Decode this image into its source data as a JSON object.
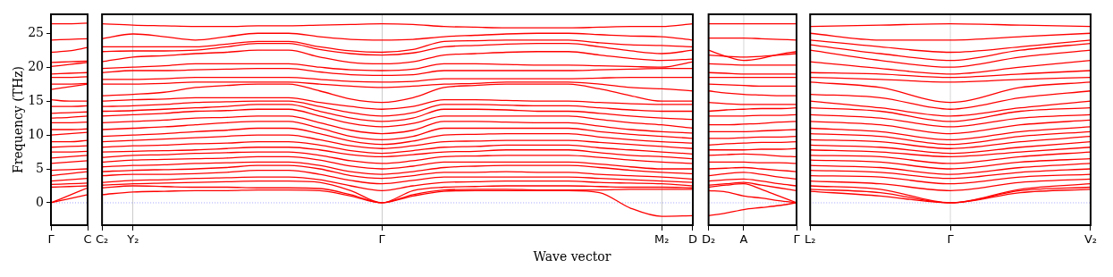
{
  "chart_data": [
    {
      "type": "line",
      "ylabel": "Frequency (THz)",
      "categories": [
        "Γ",
        null,
        "C"
      ],
      "ylim": [
        -3.3,
        27.8
      ],
      "yticks": [
        0,
        5,
        10,
        15,
        20,
        25
      ],
      "legend": false,
      "marker": "none",
      "line_style": "solid",
      "ref_lines": [
        {
          "axis": "y",
          "value": 0,
          "color": "#8888ff",
          "line_style": "dotted"
        }
      ],
      "series": [
        {
          "color": "#ff0000",
          "values": [
            0,
            0.6,
            1.2
          ]
        },
        {
          "color": "#ff0000",
          "values": [
            0,
            1.1,
            2.2
          ]
        },
        {
          "color": "#ff0000",
          "values": [
            2.3,
            2.4,
            2.5
          ]
        },
        {
          "color": "#ff0000",
          "values": [
            2.7,
            2.8,
            2.9
          ]
        },
        {
          "color": "#ff0000",
          "values": [
            3.2,
            3.4,
            3.6
          ]
        },
        {
          "color": "#ff0000",
          "values": [
            4.0,
            4.3,
            4.6
          ]
        },
        {
          "color": "#ff0000",
          "values": [
            4.8,
            4.9,
            5.0
          ]
        },
        {
          "color": "#ff0000",
          "values": [
            5.8,
            6.0,
            6.2
          ]
        },
        {
          "color": "#ff0000",
          "values": [
            6.6,
            6.8,
            7.0
          ]
        },
        {
          "color": "#ff0000",
          "values": [
            7.5,
            7.5,
            7.6
          ]
        },
        {
          "color": "#ff0000",
          "values": [
            8.2,
            8.3,
            8.4
          ]
        },
        {
          "color": "#ff0000",
          "values": [
            9.0,
            9.0,
            9.2
          ]
        },
        {
          "color": "#ff0000",
          "values": [
            10.0,
            10.2,
            10.4
          ]
        },
        {
          "color": "#ff0000",
          "values": [
            10.8,
            10.8,
            10.9
          ]
        },
        {
          "color": "#ff0000",
          "values": [
            11.8,
            11.8,
            11.9
          ]
        },
        {
          "color": "#ff0000",
          "values": [
            12.5,
            12.6,
            12.8
          ]
        },
        {
          "color": "#ff0000",
          "values": [
            13.2,
            13.3,
            13.4
          ]
        },
        {
          "color": "#ff0000",
          "values": [
            14.2,
            14.2,
            14.3
          ]
        },
        {
          "color": "#ff0000",
          "values": [
            15.2,
            15.0,
            15.0
          ]
        },
        {
          "color": "#ff0000",
          "values": [
            16.7,
            17.1,
            17.5
          ]
        },
        {
          "color": "#ff0000",
          "values": [
            17.5,
            17.5,
            17.6
          ]
        },
        {
          "color": "#ff0000",
          "values": [
            18.5,
            18.5,
            18.6
          ]
        },
        {
          "color": "#ff0000",
          "values": [
            19.0,
            19.1,
            19.2
          ]
        },
        {
          "color": "#ff0000",
          "values": [
            20.1,
            20.4,
            20.7
          ]
        },
        {
          "color": "#ff0000",
          "values": [
            20.7,
            20.8,
            20.9
          ]
        },
        {
          "color": "#ff0000",
          "values": [
            22.2,
            22.4,
            22.9
          ]
        },
        {
          "color": "#ff0000",
          "values": [
            24.0,
            24.1,
            24.2
          ]
        },
        {
          "color": "#ff0000",
          "values": [
            26.4,
            26.4,
            26.5
          ]
        }
      ]
    },
    {
      "type": "line",
      "xlabel": "Wave vector",
      "categories": [
        "C₂",
        "Y₂",
        null,
        null,
        null,
        null,
        null,
        null,
        null,
        "Γ",
        null,
        null,
        null,
        null,
        null,
        null,
        null,
        null,
        "M₂",
        "D"
      ],
      "ylim": [
        -3.3,
        27.8
      ],
      "yticks": [
        0,
        5,
        10,
        15,
        20,
        25
      ],
      "tick_labels": "x",
      "grid": "x",
      "legend": false,
      "marker": "none",
      "line_style": "solid",
      "ref_lines": [
        {
          "axis": "y",
          "value": 0,
          "color": "#8888ff",
          "line_style": "dotted"
        }
      ],
      "series": [
        {
          "color": "#ff0000",
          "values": [
            1.2,
            1.6,
            1.7,
            1.8,
            1.8,
            1.9,
            1.9,
            1.8,
            1.0,
            0,
            1.0,
            1.7,
            1.8,
            1.8,
            1.8,
            1.8,
            1.5,
            -0.8,
            -2.0,
            -1.9
          ]
        },
        {
          "color": "#ff0000",
          "values": [
            2.2,
            2.5,
            2.4,
            2.3,
            2.3,
            2.2,
            2.2,
            2.1,
            1.2,
            0,
            1.2,
            1.9,
            2.0,
            2.0,
            1.9,
            1.9,
            1.9,
            2.0,
            2.0,
            2.0
          ]
        },
        {
          "color": "#ff0000",
          "values": [
            2.6,
            2.8,
            2.9,
            3.0,
            3.1,
            3.2,
            3.2,
            3.0,
            1.8,
            0,
            1.8,
            2.3,
            2.4,
            2.5,
            2.5,
            2.5,
            2.4,
            2.3,
            2.3,
            2.2
          ]
        },
        {
          "color": "#ff0000",
          "values": [
            3.0,
            3.3,
            3.4,
            3.6,
            3.7,
            3.8,
            3.8,
            3.4,
            2.5,
            1.8,
            2.5,
            3.0,
            3.1,
            3.2,
            3.2,
            3.2,
            3.0,
            2.9,
            2.8,
            2.5
          ]
        },
        {
          "color": "#ff0000",
          "values": [
            4.0,
            4.2,
            4.2,
            4.3,
            4.5,
            4.8,
            4.8,
            4.2,
            3.3,
            2.8,
            3.3,
            3.8,
            3.8,
            3.8,
            3.8,
            3.8,
            3.6,
            3.4,
            3.2,
            3.0
          ]
        },
        {
          "color": "#ff0000",
          "values": [
            4.6,
            4.8,
            4.9,
            5.0,
            5.2,
            5.5,
            5.5,
            5.0,
            4.0,
            3.6,
            4.0,
            4.5,
            4.5,
            4.6,
            4.5,
            4.5,
            4.2,
            4.0,
            3.8,
            3.5
          ]
        },
        {
          "color": "#ff0000",
          "values": [
            5.3,
            5.5,
            5.6,
            5.8,
            5.9,
            6.0,
            6.0,
            5.5,
            4.6,
            4.2,
            4.6,
            5.2,
            5.4,
            5.5,
            5.5,
            5.5,
            5.2,
            4.8,
            4.5,
            4.3
          ]
        },
        {
          "color": "#ff0000",
          "values": [
            6.0,
            6.3,
            6.4,
            6.5,
            6.6,
            6.8,
            6.8,
            6.3,
            5.4,
            5.0,
            5.4,
            6.0,
            6.0,
            6.0,
            6.0,
            6.0,
            5.7,
            5.3,
            5.0,
            5.0
          ]
        },
        {
          "color": "#ff0000",
          "values": [
            6.7,
            7.0,
            7.1,
            7.3,
            7.4,
            7.5,
            7.5,
            7.0,
            6.2,
            5.8,
            6.2,
            6.8,
            6.9,
            7.0,
            7.0,
            7.0,
            6.7,
            6.3,
            6.0,
            5.8
          ]
        },
        {
          "color": "#ff0000",
          "values": [
            7.5,
            7.6,
            7.7,
            7.8,
            8.0,
            8.2,
            8.2,
            7.8,
            7.1,
            6.8,
            7.1,
            7.5,
            7.6,
            7.8,
            7.8,
            7.8,
            7.4,
            7.0,
            6.8,
            6.5
          ]
        },
        {
          "color": "#ff0000",
          "values": [
            8.2,
            8.4,
            8.5,
            8.7,
            8.8,
            9.0,
            9.0,
            8.5,
            7.7,
            7.3,
            7.7,
            8.2,
            8.3,
            8.5,
            8.5,
            8.5,
            8.1,
            7.8,
            7.5,
            7.2
          ]
        },
        {
          "color": "#ff0000",
          "values": [
            9.0,
            9.2,
            9.4,
            9.6,
            9.8,
            10.0,
            10.0,
            9.3,
            8.4,
            8.0,
            8.4,
            9.0,
            9.1,
            9.2,
            9.2,
            9.2,
            8.9,
            8.6,
            8.3,
            8.0
          ]
        },
        {
          "color": "#ff0000",
          "values": [
            9.8,
            10.0,
            10.2,
            10.5,
            10.7,
            11.0,
            11.0,
            10.2,
            9.1,
            8.6,
            9.1,
            10.0,
            10.1,
            10.2,
            10.2,
            10.2,
            9.7,
            9.3,
            9.0,
            8.8
          ]
        },
        {
          "color": "#ff0000",
          "values": [
            10.8,
            11.0,
            11.2,
            11.5,
            11.8,
            12.0,
            12.0,
            11.0,
            9.8,
            9.3,
            9.8,
            11.0,
            11.0,
            11.0,
            11.0,
            11.0,
            10.5,
            10.1,
            9.8,
            9.5
          ]
        },
        {
          "color": "#ff0000",
          "values": [
            11.8,
            12.0,
            12.2,
            12.5,
            12.6,
            12.8,
            12.8,
            11.8,
            10.7,
            10.2,
            10.7,
            12.0,
            12.0,
            11.9,
            11.8,
            11.8,
            11.3,
            10.8,
            10.5,
            10.3
          ]
        },
        {
          "color": "#ff0000",
          "values": [
            12.8,
            13.0,
            13.2,
            13.5,
            13.6,
            13.8,
            13.8,
            12.8,
            11.7,
            11.2,
            11.7,
            12.8,
            12.8,
            12.8,
            12.8,
            12.8,
            12.3,
            11.8,
            11.5,
            11.0
          ]
        },
        {
          "color": "#ff0000",
          "values": [
            13.5,
            13.6,
            13.8,
            14.0,
            14.2,
            14.5,
            14.5,
            13.5,
            12.5,
            12.0,
            12.5,
            13.8,
            13.8,
            13.7,
            13.5,
            13.5,
            13.2,
            12.8,
            12.5,
            12.3
          ]
        },
        {
          "color": "#ff0000",
          "values": [
            14.2,
            14.3,
            14.5,
            14.8,
            14.9,
            15.0,
            15.0,
            14.2,
            13.3,
            12.8,
            13.3,
            14.5,
            14.5,
            14.4,
            14.3,
            14.3,
            14.0,
            13.7,
            13.5,
            13.5
          ]
        },
        {
          "color": "#ff0000",
          "values": [
            15.0,
            15.2,
            15.3,
            15.5,
            15.5,
            15.5,
            15.5,
            14.8,
            14.2,
            13.8,
            14.2,
            15.2,
            15.2,
            15.1,
            15.0,
            15.0,
            14.8,
            14.6,
            14.5,
            14.5
          ]
        },
        {
          "color": "#ff0000",
          "values": [
            15.8,
            16.0,
            16.3,
            17.0,
            17.3,
            17.5,
            17.5,
            16.5,
            15.3,
            14.8,
            15.5,
            17.0,
            17.3,
            17.5,
            17.5,
            17.5,
            16.8,
            15.8,
            15.0,
            15.0
          ]
        },
        {
          "color": "#ff0000",
          "values": [
            17.5,
            17.5,
            17.6,
            17.8,
            17.8,
            17.8,
            17.8,
            17.5,
            17.2,
            17.0,
            17.2,
            17.5,
            17.6,
            17.8,
            17.8,
            17.8,
            17.5,
            17.0,
            16.8,
            16.5
          ]
        },
        {
          "color": "#ff0000",
          "values": [
            18.2,
            18.2,
            18.3,
            18.5,
            18.5,
            18.5,
            18.5,
            18.2,
            17.9,
            17.8,
            17.9,
            18.3,
            18.3,
            18.3,
            18.3,
            18.3,
            18.4,
            18.5,
            18.5,
            18.5
          ]
        },
        {
          "color": "#ff0000",
          "values": [
            19.2,
            19.5,
            19.5,
            19.6,
            19.7,
            19.8,
            19.8,
            19.3,
            18.9,
            18.8,
            18.9,
            19.5,
            19.5,
            19.5,
            19.5,
            19.5,
            19.6,
            19.7,
            19.8,
            19.8
          ]
        },
        {
          "color": "#ff0000",
          "values": [
            19.8,
            20.0,
            20.2,
            20.5,
            20.5,
            20.5,
            20.5,
            20.0,
            19.6,
            19.5,
            19.7,
            20.5,
            20.5,
            20.4,
            20.3,
            20.3,
            20.2,
            20.1,
            20.0,
            20.8
          ]
        },
        {
          "color": "#ff0000",
          "values": [
            20.8,
            21.5,
            21.7,
            22.0,
            22.2,
            22.5,
            22.5,
            21.5,
            20.7,
            20.5,
            20.8,
            21.8,
            22.0,
            22.2,
            22.3,
            22.3,
            21.8,
            21.3,
            21.0,
            21.2
          ]
        },
        {
          "color": "#ff0000",
          "values": [
            22.3,
            22.4,
            22.4,
            22.5,
            23.0,
            23.5,
            23.5,
            22.6,
            22.0,
            21.8,
            22.1,
            23.0,
            23.2,
            23.4,
            23.5,
            23.5,
            23.0,
            22.4,
            22.0,
            22.5
          ]
        },
        {
          "color": "#ff0000",
          "values": [
            23.0,
            23.0,
            23.0,
            23.0,
            23.4,
            23.8,
            23.8,
            23.0,
            22.4,
            22.2,
            22.6,
            23.8,
            23.9,
            24.0,
            24.0,
            24.0,
            23.6,
            23.3,
            23.2,
            23.0
          ]
        },
        {
          "color": "#ff0000",
          "values": [
            24.2,
            24.9,
            24.5,
            24.0,
            24.5,
            25.0,
            25.0,
            24.5,
            24.1,
            24.0,
            24.1,
            24.5,
            24.7,
            24.9,
            25.0,
            25.0,
            24.8,
            24.6,
            24.5,
            24.0
          ]
        },
        {
          "color": "#ff0000",
          "values": [
            26.4,
            26.2,
            26.1,
            26.0,
            26.0,
            26.1,
            26.1,
            26.2,
            26.3,
            26.4,
            26.3,
            26.0,
            25.9,
            25.8,
            25.8,
            25.8,
            25.9,
            26.0,
            26.0,
            26.4
          ]
        }
      ]
    },
    {
      "type": "line",
      "categories": [
        "D₂",
        null,
        "A",
        null,
        null,
        "Γ"
      ],
      "ylim": [
        -3.3,
        27.8
      ],
      "yticks": [
        0,
        5,
        10,
        15,
        20,
        25
      ],
      "tick_labels": "x",
      "legend": false,
      "marker": "none",
      "line_style": "solid",
      "ref_lines": [
        {
          "axis": "y",
          "value": 0,
          "color": "#8888ff",
          "line_style": "dotted"
        },
        {
          "axis": "x",
          "value": "A",
          "color": "#cccccc",
          "line_style": "solid"
        }
      ],
      "series": [
        {
          "color": "#ff0000",
          "values": [
            -1.9,
            -1.5,
            -1.0,
            -0.7,
            -0.4,
            0
          ]
        },
        {
          "color": "#ff0000",
          "values": [
            1.8,
            1.6,
            1.0,
            0.7,
            0.3,
            0
          ]
        },
        {
          "color": "#ff0000",
          "values": [
            2.3,
            2.6,
            2.8,
            2.0,
            1.0,
            0
          ]
        },
        {
          "color": "#ff0000",
          "values": [
            2.6,
            2.8,
            3.0,
            2.6,
            2.2,
            1.8
          ]
        },
        {
          "color": "#ff0000",
          "values": [
            3.2,
            3.4,
            3.5,
            3.2,
            2.8,
            2.5
          ]
        },
        {
          "color": "#ff0000",
          "values": [
            4.0,
            4.3,
            4.5,
            4.2,
            3.8,
            3.5
          ]
        },
        {
          "color": "#ff0000",
          "values": [
            5.0,
            5.1,
            5.2,
            5.0,
            4.8,
            4.6
          ]
        },
        {
          "color": "#ff0000",
          "values": [
            6.0,
            6.0,
            6.0,
            5.9,
            5.9,
            5.8
          ]
        },
        {
          "color": "#ff0000",
          "values": [
            7.0,
            7.1,
            7.2,
            7.1,
            6.9,
            6.8
          ]
        },
        {
          "color": "#ff0000",
          "values": [
            7.8,
            7.8,
            7.8,
            7.9,
            7.9,
            8.0
          ]
        },
        {
          "color": "#ff0000",
          "values": [
            8.5,
            8.7,
            8.8,
            8.9,
            8.9,
            9.0
          ]
        },
        {
          "color": "#ff0000",
          "values": [
            9.5,
            9.5,
            9.6,
            9.7,
            9.7,
            9.8
          ]
        },
        {
          "color": "#ff0000",
          "values": [
            10.5,
            10.5,
            10.5,
            10.6,
            10.7,
            10.8
          ]
        },
        {
          "color": "#ff0000",
          "values": [
            11.5,
            11.5,
            11.6,
            11.7,
            11.9,
            12.0
          ]
        },
        {
          "color": "#ff0000",
          "values": [
            12.8,
            12.8,
            12.8,
            12.9,
            12.9,
            13.0
          ]
        },
        {
          "color": "#ff0000",
          "values": [
            13.5,
            13.7,
            13.8,
            13.9,
            13.9,
            14.0
          ]
        },
        {
          "color": "#ff0000",
          "values": [
            14.8,
            14.6,
            14.5,
            14.5,
            14.5,
            14.5
          ]
        },
        {
          "color": "#ff0000",
          "values": [
            16.5,
            16.2,
            16.0,
            15.9,
            15.8,
            15.8
          ]
        },
        {
          "color": "#ff0000",
          "values": [
            17.5,
            17.4,
            17.3,
            17.2,
            17.2,
            17.2
          ]
        },
        {
          "color": "#ff0000",
          "values": [
            18.5,
            18.5,
            18.5,
            18.5,
            18.5,
            18.5
          ]
        },
        {
          "color": "#ff0000",
          "values": [
            19.2,
            19.1,
            19.0,
            19.0,
            19.0,
            19.0
          ]
        },
        {
          "color": "#ff0000",
          "values": [
            20.5,
            20.4,
            20.3,
            20.3,
            20.3,
            20.3
          ]
        },
        {
          "color": "#ff0000",
          "values": [
            21.8,
            21.6,
            21.5,
            21.6,
            21.8,
            22.0
          ]
        },
        {
          "color": "#ff0000",
          "values": [
            22.5,
            21.6,
            21.0,
            21.3,
            21.9,
            22.3
          ]
        },
        {
          "color": "#ff0000",
          "values": [
            24.3,
            24.3,
            24.3,
            24.2,
            24.1,
            24.0
          ]
        },
        {
          "color": "#ff0000",
          "values": [
            26.4,
            26.4,
            26.4,
            26.4,
            26.4,
            26.4
          ]
        }
      ]
    },
    {
      "type": "line",
      "categories": [
        "L₂",
        null,
        "Γ",
        null,
        "V₂"
      ],
      "ylim": [
        -3.3,
        27.8
      ],
      "yticks": [
        0,
        5,
        10,
        15,
        20,
        25
      ],
      "tick_labels": "x",
      "legend": false,
      "marker": "none",
      "line_style": "solid",
      "ref_lines": [
        {
          "axis": "y",
          "value": 0,
          "color": "#8888ff",
          "line_style": "dotted"
        },
        {
          "axis": "x",
          "value": "Γ",
          "color": "#cccccc",
          "line_style": "solid"
        }
      ],
      "series": [
        {
          "color": "#ff0000",
          "values": [
            1.7,
            1.0,
            0,
            1.5,
            2.0
          ]
        },
        {
          "color": "#ff0000",
          "values": [
            2.0,
            1.5,
            0,
            1.8,
            2.3
          ]
        },
        {
          "color": "#ff0000",
          "values": [
            2.5,
            2.0,
            0,
            2.0,
            2.8
          ]
        },
        {
          "color": "#ff0000",
          "values": [
            3.2,
            2.8,
            1.8,
            3.0,
            3.5
          ]
        },
        {
          "color": "#ff0000",
          "values": [
            4.0,
            3.8,
            2.8,
            3.8,
            4.2
          ]
        },
        {
          "color": "#ff0000",
          "values": [
            4.8,
            4.5,
            3.6,
            4.5,
            5.0
          ]
        },
        {
          "color": "#ff0000",
          "values": [
            5.5,
            5.2,
            4.2,
            5.2,
            5.8
          ]
        },
        {
          "color": "#ff0000",
          "values": [
            6.3,
            6.0,
            5.0,
            6.0,
            6.5
          ]
        },
        {
          "color": "#ff0000",
          "values": [
            7.0,
            6.8,
            5.8,
            6.8,
            7.5
          ]
        },
        {
          "color": "#ff0000",
          "values": [
            7.8,
            7.5,
            6.8,
            7.5,
            8.2
          ]
        },
        {
          "color": "#ff0000",
          "values": [
            8.5,
            8.2,
            7.3,
            8.2,
            9.0
          ]
        },
        {
          "color": "#ff0000",
          "values": [
            9.3,
            9.0,
            8.0,
            9.0,
            9.8
          ]
        },
        {
          "color": "#ff0000",
          "values": [
            10.2,
            9.8,
            8.6,
            9.8,
            10.5
          ]
        },
        {
          "color": "#ff0000",
          "values": [
            11.0,
            10.5,
            9.3,
            10.5,
            11.2
          ]
        },
        {
          "color": "#ff0000",
          "values": [
            12.0,
            11.5,
            10.2,
            11.5,
            12.2
          ]
        },
        {
          "color": "#ff0000",
          "values": [
            13.0,
            12.5,
            11.2,
            12.5,
            13.0
          ]
        },
        {
          "color": "#ff0000",
          "values": [
            14.0,
            13.5,
            12.0,
            13.5,
            14.0
          ]
        },
        {
          "color": "#ff0000",
          "values": [
            15.0,
            14.0,
            12.8,
            14.0,
            15.0
          ]
        },
        {
          "color": "#ff0000",
          "values": [
            16.0,
            15.5,
            13.8,
            15.5,
            16.5
          ]
        },
        {
          "color": "#ff0000",
          "values": [
            17.8,
            17.0,
            14.8,
            17.0,
            17.8
          ]
        },
        {
          "color": "#ff0000",
          "values": [
            18.5,
            18.2,
            17.8,
            18.2,
            18.5
          ]
        },
        {
          "color": "#ff0000",
          "values": [
            19.2,
            19.0,
            18.5,
            19.0,
            19.5
          ]
        },
        {
          "color": "#ff0000",
          "values": [
            20.8,
            19.8,
            19.0,
            20.0,
            21.0
          ]
        },
        {
          "color": "#ff0000",
          "values": [
            22.5,
            21.0,
            20.0,
            21.5,
            22.5
          ]
        },
        {
          "color": "#ff0000",
          "values": [
            23.3,
            22.0,
            21.0,
            22.5,
            23.5
          ]
        },
        {
          "color": "#ff0000",
          "values": [
            24.0,
            23.0,
            22.2,
            23.0,
            24.0
          ]
        },
        {
          "color": "#ff0000",
          "values": [
            25.0,
            24.0,
            24.0,
            24.5,
            25.0
          ]
        },
        {
          "color": "#ff0000",
          "values": [
            26.0,
            26.2,
            26.4,
            26.2,
            26.0
          ]
        }
      ]
    }
  ]
}
